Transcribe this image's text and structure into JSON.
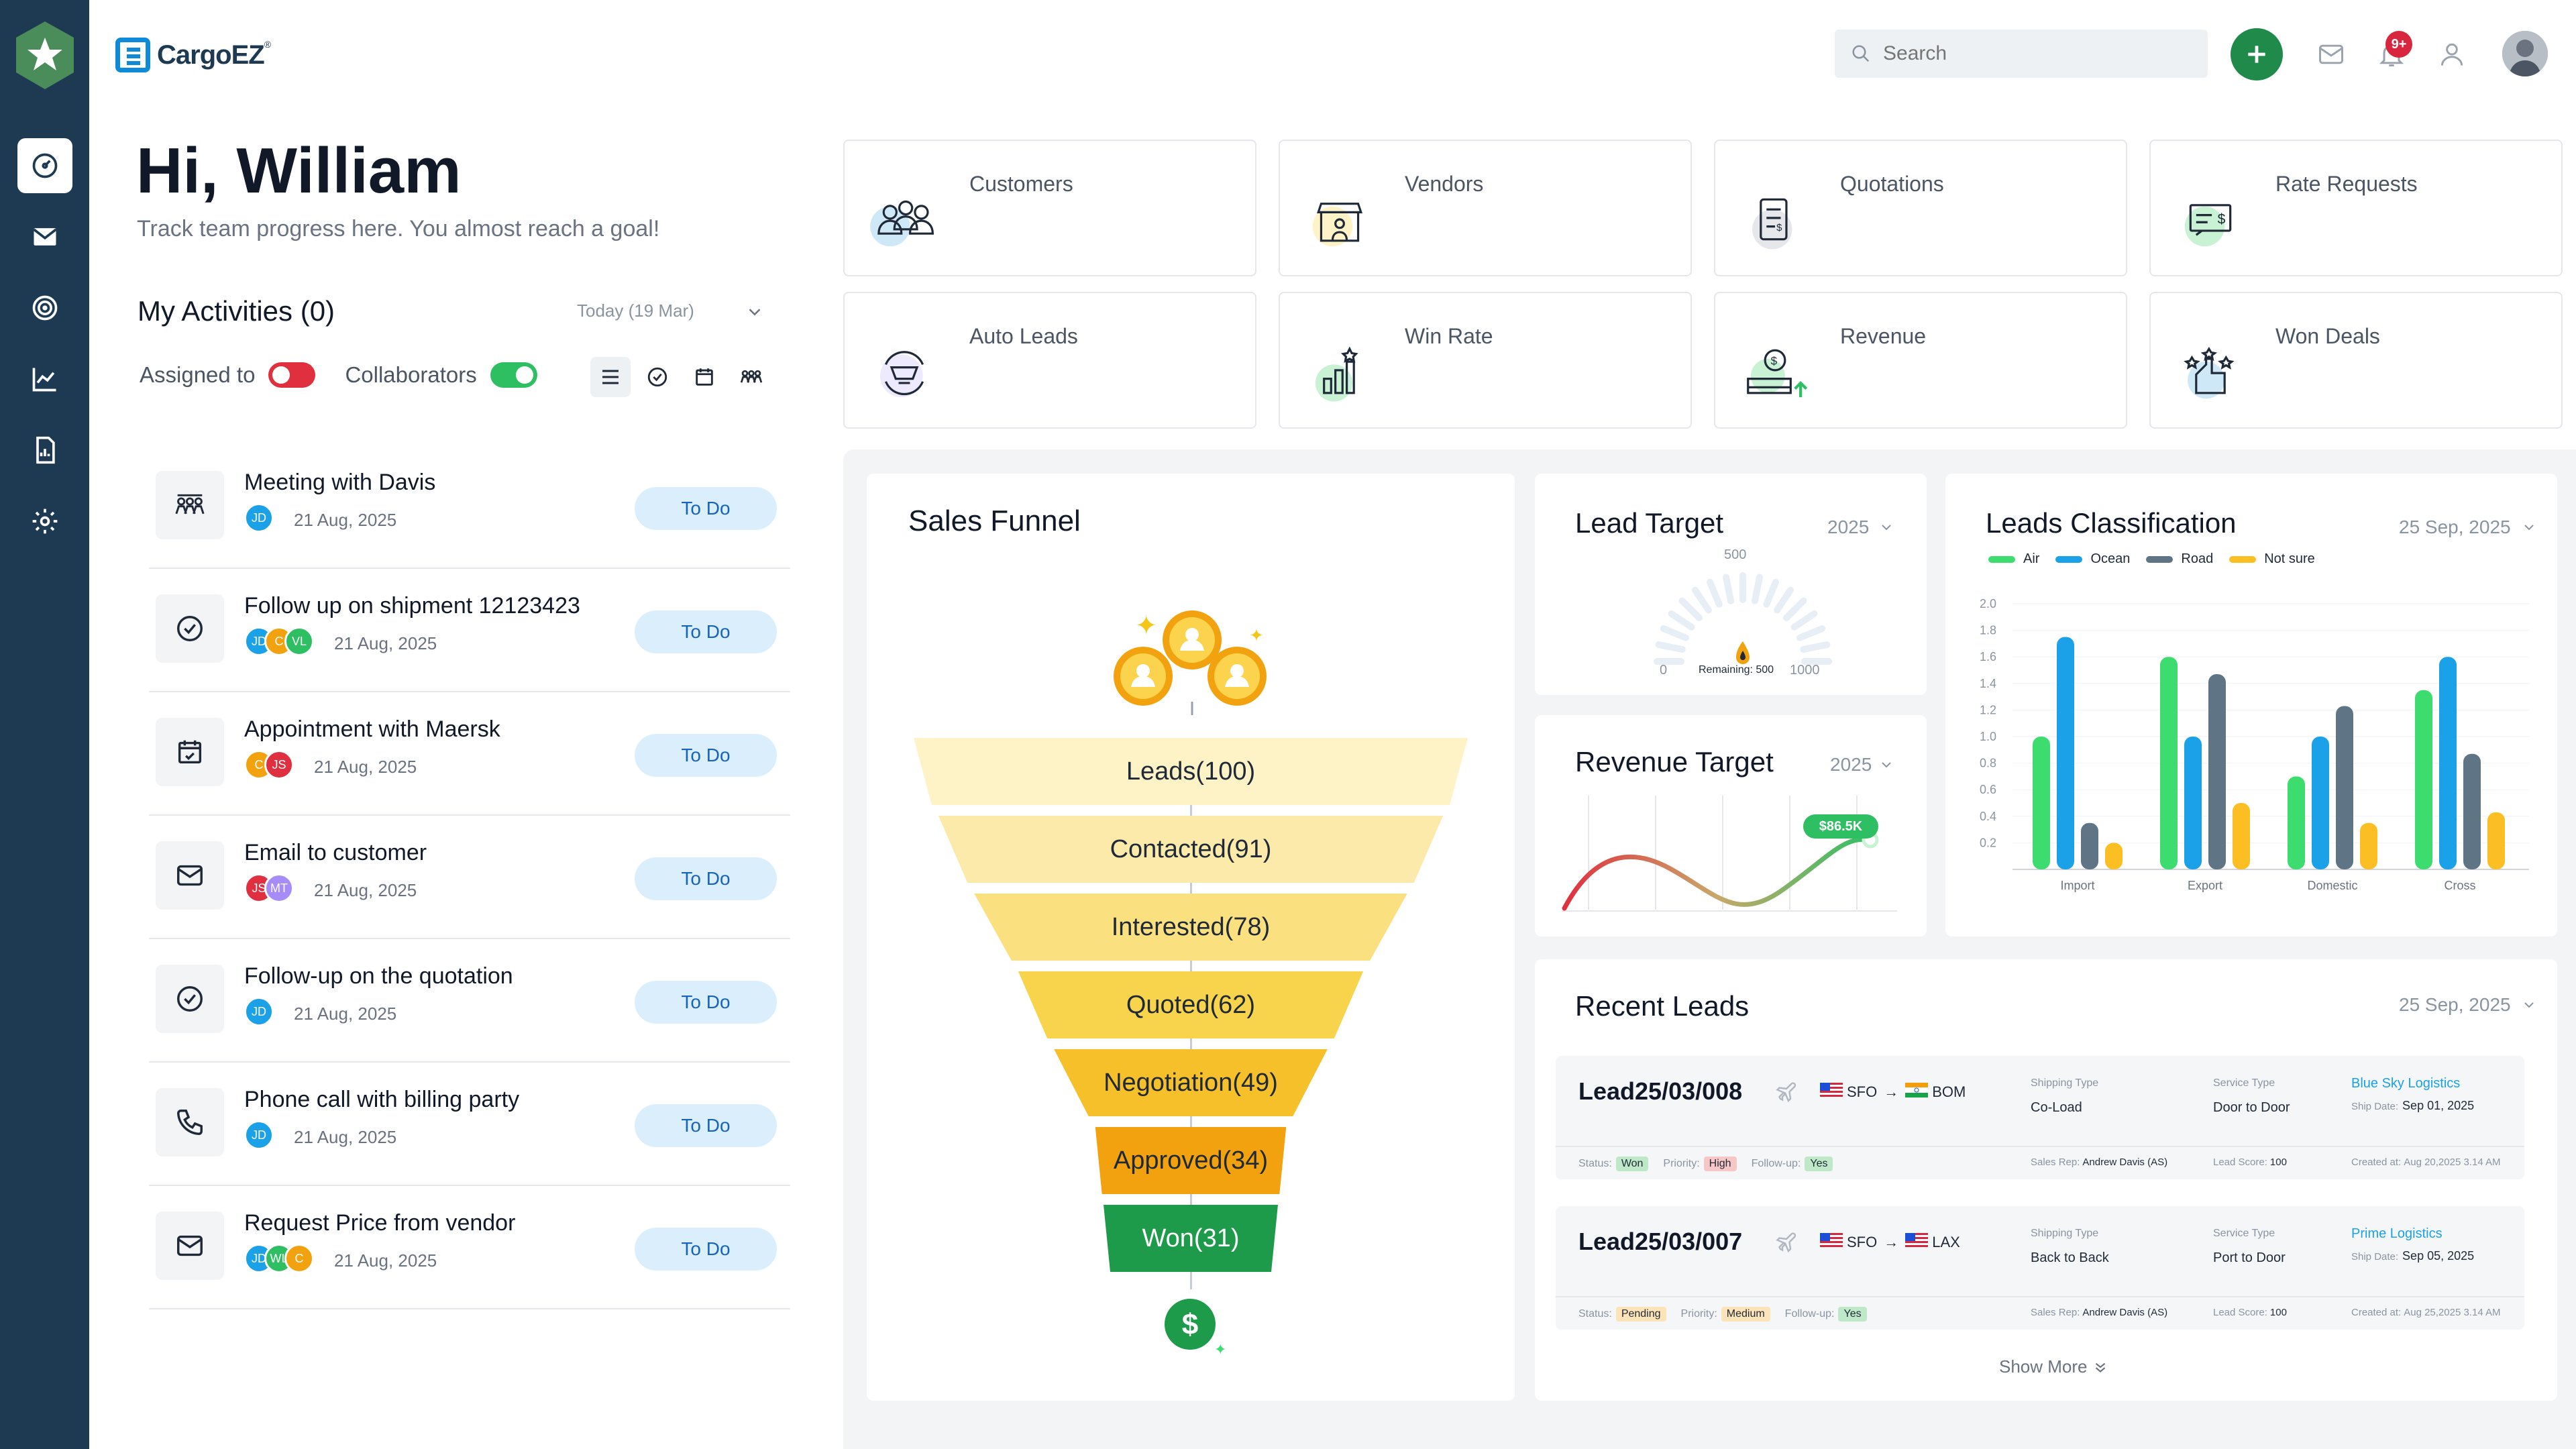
{
  "brand": {
    "name": "CargoEZ",
    "reg": "®"
  },
  "header": {
    "search_placeholder": "Search",
    "notif_count": "9+"
  },
  "greeting": {
    "title": "Hi, William",
    "subtitle": "Track team progress here. You almost reach a goal!"
  },
  "activities": {
    "title": "My Activities (0)",
    "date": "Today (19 Mar)",
    "assigned_label": "Assigned to",
    "collab_label": "Collaborators",
    "items": [
      {
        "name": "Meeting with Davis",
        "date": "21 Aug, 2025",
        "status": "To Do",
        "people": [
          "JD"
        ],
        "icon": "meeting-icon"
      },
      {
        "name": "Follow up on shipment 12123423",
        "date": "21 Aug, 2025",
        "status": "To Do",
        "people": [
          "JD",
          "C",
          "VL"
        ],
        "icon": "check-circle-icon"
      },
      {
        "name": "Appointment with Maersk",
        "date": "21 Aug, 2025",
        "status": "To Do",
        "people": [
          "C",
          "JS"
        ],
        "icon": "calendar-icon"
      },
      {
        "name": "Email to customer",
        "date": "21 Aug, 2025",
        "status": "To Do",
        "people": [
          "JS",
          "MT"
        ],
        "icon": "mail-icon"
      },
      {
        "name": "Follow-up on the quotation",
        "date": "21 Aug, 2025",
        "status": "To Do",
        "people": [
          "JD"
        ],
        "icon": "check-circle-icon"
      },
      {
        "name": "Phone call with billing party",
        "date": "21 Aug, 2025",
        "status": "To Do",
        "people": [
          "JD"
        ],
        "icon": "phone-icon"
      },
      {
        "name": "Request Price from vendor",
        "date": "21 Aug, 2025",
        "status": "To Do",
        "people": [
          "JD",
          "WL",
          "C"
        ],
        "icon": "mail-icon"
      }
    ]
  },
  "tiles": [
    {
      "label": "Customers",
      "icon": "customers-icon"
    },
    {
      "label": "Vendors",
      "icon": "vendors-icon"
    },
    {
      "label": "Quotations",
      "icon": "quotations-icon"
    },
    {
      "label": "Rate Requests",
      "icon": "rate-requests-icon"
    },
    {
      "label": "Auto Leads",
      "icon": "auto-leads-icon"
    },
    {
      "label": "Win Rate",
      "icon": "win-rate-icon"
    },
    {
      "label": "Revenue",
      "icon": "revenue-icon"
    },
    {
      "label": "Won Deals",
      "icon": "won-deals-icon"
    }
  ],
  "funnel": {
    "title": "Sales Funnel",
    "stages": [
      {
        "label": "Leads(100)",
        "value": 100,
        "color": "#fdf3c7"
      },
      {
        "label": "Contacted(91)",
        "value": 91,
        "color": "#fbeaa9"
      },
      {
        "label": "Interested(78)",
        "value": 78,
        "color": "#fbe07f"
      },
      {
        "label": "Quoted(62)",
        "value": 62,
        "color": "#f8d44d"
      },
      {
        "label": "Negotiation(49)",
        "value": 49,
        "color": "#f6c02a"
      },
      {
        "label": "Approved(34)",
        "value": 34,
        "color": "#f2a20f"
      },
      {
        "label": "Won(31)",
        "value": 31,
        "color": "#1e9b4a"
      }
    ]
  },
  "lead_target": {
    "title": "Lead Target",
    "year": "2025",
    "max_label": "500",
    "min_label": "0",
    "remaining": "Remaining: 500",
    "end_label": "1000"
  },
  "revenue_target": {
    "title": "Revenue Target",
    "year": "2025",
    "value": "$86.5K"
  },
  "chart_data": {
    "type": "bar",
    "title": "Leads Classification",
    "date": "25 Sep, 2025",
    "categories": [
      "Import",
      "Export",
      "Domestic",
      "Cross"
    ],
    "series": [
      {
        "name": "Air",
        "color": "#3ddc6e",
        "values": [
          1.0,
          1.6,
          0.7,
          1.35
        ]
      },
      {
        "name": "Ocean",
        "color": "#1ba1e8",
        "values": [
          1.75,
          1.0,
          1.0,
          1.6
        ]
      },
      {
        "name": "Road",
        "color": "#5f7585",
        "values": [
          0.35,
          1.47,
          1.23,
          0.87
        ]
      },
      {
        "name": "Not sure",
        "color": "#fbbf24",
        "values": [
          0.2,
          0.5,
          0.35,
          0.43
        ]
      }
    ],
    "ylim": [
      0,
      2.0
    ],
    "yticks": [
      "2.0",
      "1.8",
      "1.6",
      "1.4",
      "1.2",
      "1.0",
      "0.8",
      "0.6",
      "0.4",
      "0.2"
    ]
  },
  "recent_leads": {
    "title": "Recent Leads",
    "date": "25 Sep, 2025",
    "show_more": "Show More",
    "items": [
      {
        "id": "Lead25/03/008",
        "origin": "SFO",
        "dest": "BOM",
        "shipping_type_label": "Shipping Type",
        "shipping_type": "Co-Load",
        "service_type_label": "Service Type",
        "service_type": "Door to Door",
        "company": "Blue Sky Logistics",
        "ship_date_label": "Ship Date:",
        "ship_date": "Sep 01, 2025",
        "status_label": "Status:",
        "status": "Won",
        "status_color": "#bfe8c8",
        "priority_label": "Priority:",
        "priority": "High",
        "priority_color": "#f7c6c6",
        "followup_label": "Follow-up:",
        "followup": "Yes",
        "sales_rep_label": "Sales Rep:",
        "sales_rep": "Andrew Davis (AS)",
        "score_label": "Lead Score:",
        "score": "100",
        "created_label": "Created at:",
        "created": "Aug 20,2025 3.14 AM"
      },
      {
        "id": "Lead25/03/007",
        "origin": "SFO",
        "dest": "LAX",
        "shipping_type_label": "Shipping Type",
        "shipping_type": "Back to Back",
        "service_type_label": "Service Type",
        "service_type": "Port to Door",
        "company": "Prime Logistics",
        "ship_date_label": "Ship Date:",
        "ship_date": "Sep 05, 2025",
        "status_label": "Status:",
        "status": "Pending",
        "status_color": "#fde3b8",
        "priority_label": "Priority:",
        "priority": "Medium",
        "priority_color": "#fde3b8",
        "followup_label": "Follow-up:",
        "followup": "Yes",
        "sales_rep_label": "Sales Rep:",
        "sales_rep": "Andrew Davis (AS)",
        "score_label": "Lead Score:",
        "score": "100",
        "created_label": "Created at:",
        "created": "Aug 25,2025 3.14 AM"
      }
    ]
  }
}
